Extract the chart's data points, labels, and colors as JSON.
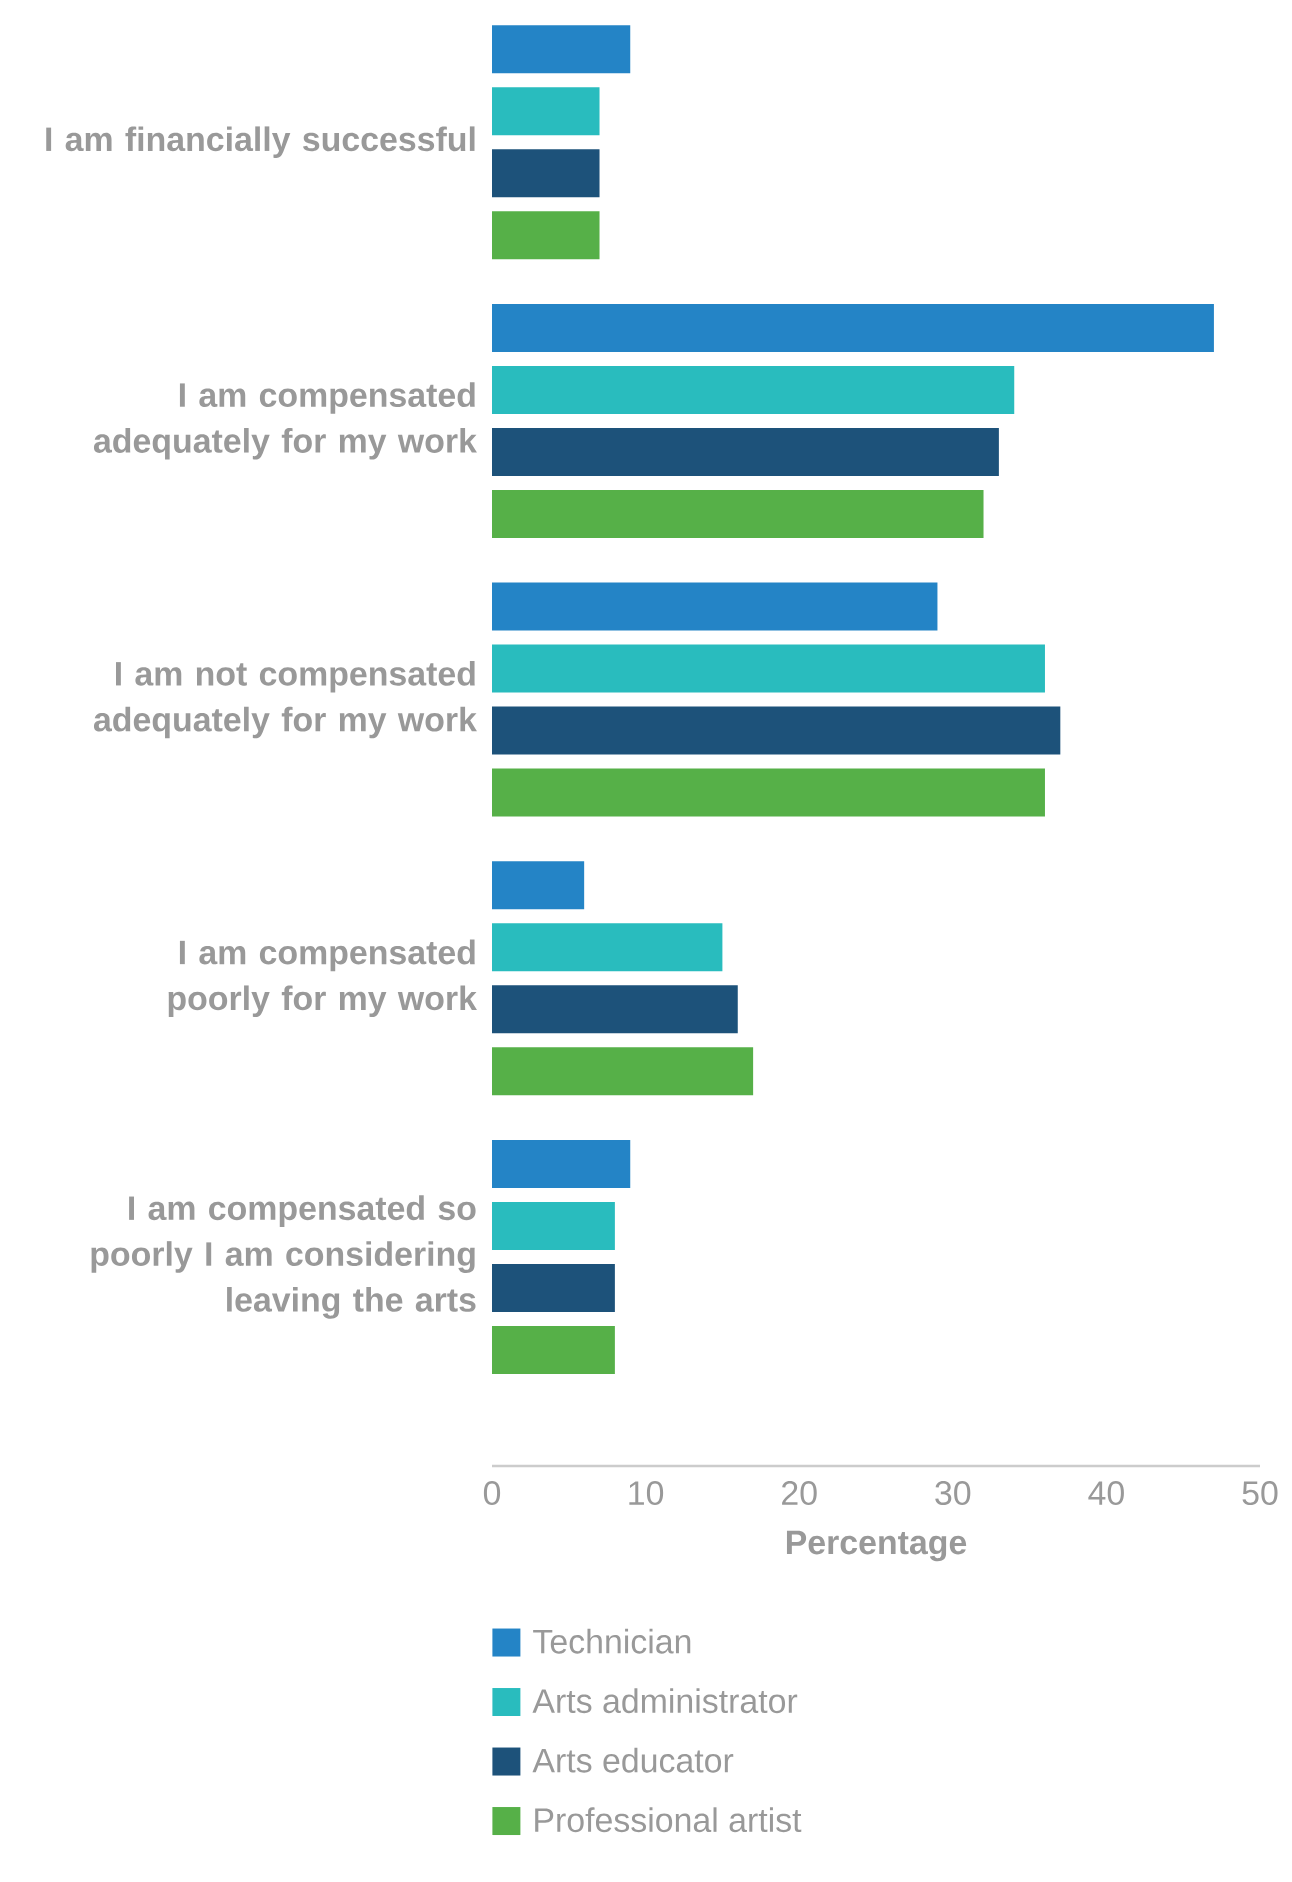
{
  "chart_data": {
    "type": "bar",
    "orientation": "horizontal",
    "xlabel": "Percentage",
    "categories": [
      "I am financially successful",
      "I am compensated adequately for my work",
      "I am not compensated adequately for my work",
      "I am compensated poorly for my work",
      "I am compensated so poorly I am considering leaving the arts"
    ],
    "series": [
      {
        "name": "Technician",
        "color": "#2484c6",
        "values": [
          9,
          47,
          29,
          6,
          9
        ]
      },
      {
        "name": "Arts administrator",
        "color": "#29bcbe",
        "values": [
          7,
          34,
          36,
          15,
          8
        ]
      },
      {
        "name": "Arts educator",
        "color": "#1d527a",
        "values": [
          7,
          33,
          37,
          16,
          8
        ]
      },
      {
        "name": "Professional artist",
        "color": "#56b048",
        "values": [
          7,
          32,
          36,
          17,
          8
        ]
      }
    ],
    "xlim": [
      0,
      50
    ],
    "xticks": [
      0,
      10,
      20,
      30,
      40,
      50
    ],
    "legend": "bottom",
    "grid": false
  }
}
